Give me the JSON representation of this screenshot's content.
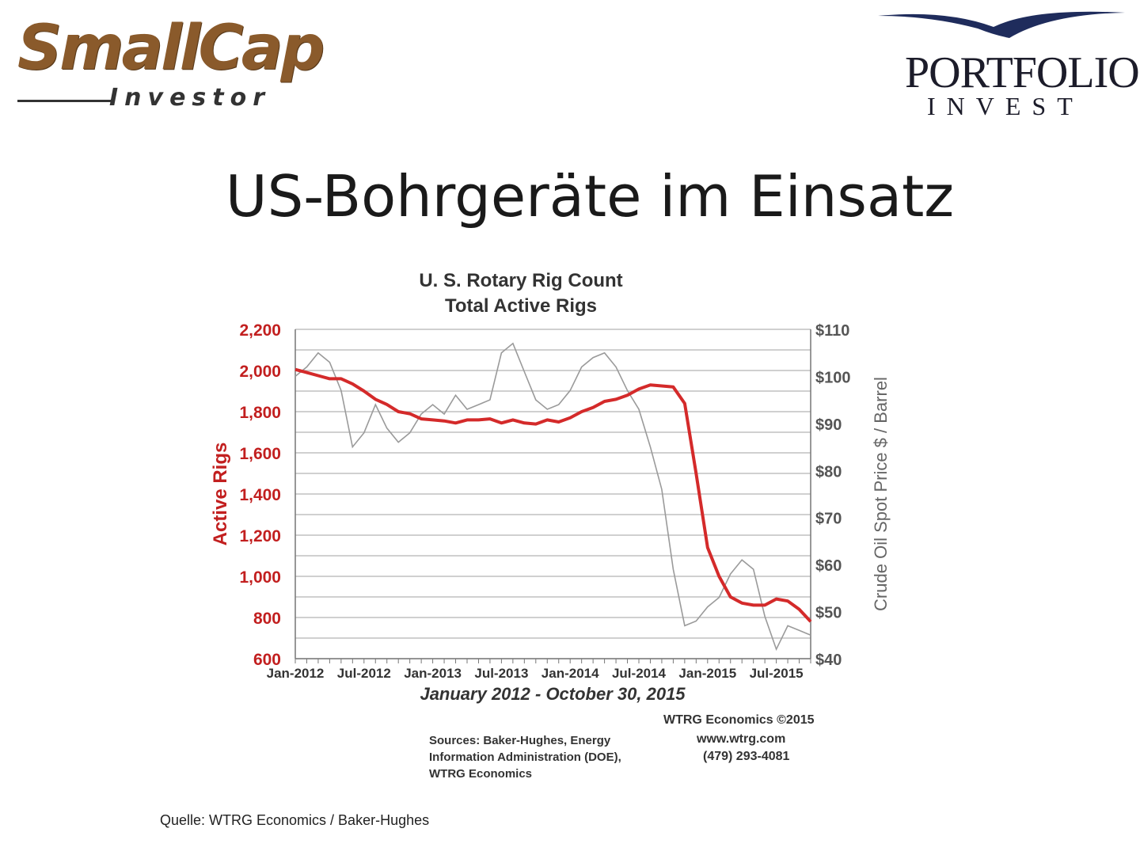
{
  "logo_left": {
    "word": "SmallCap",
    "sub": "Investor"
  },
  "logo_right": {
    "big": "PORTFOLIO",
    "small": "INVEST"
  },
  "page": {
    "title": "US-Bohrgeräte im Einsatz",
    "source": "Quelle: WTRG Economics / Baker-Hughes"
  },
  "chart_data": {
    "type": "line",
    "title_lines": [
      "U. S. Rotary Rig Count",
      "Total Active Rigs"
    ],
    "xlabel": "January 2012 - October 30, 2015",
    "ylabel_left": "Active Rigs",
    "ylabel_right": "Crude Oil Spot Price $ / Barrel",
    "x_ticks": [
      "Jan-2012",
      "Jul-2012",
      "Jan-2013",
      "Jul-2013",
      "Jan-2014",
      "Jul-2014",
      "Jan-2015",
      "Jul-2015"
    ],
    "x_range": [
      "Jan-2012",
      "Oct-2015"
    ],
    "ylim_left": [
      600,
      2200
    ],
    "ylim_right": [
      40,
      110
    ],
    "y_ticks_left": [
      "2,200",
      "2,000",
      "1,800",
      "1,600",
      "1,400",
      "1,200",
      "1,000",
      "800",
      "600"
    ],
    "y_ticks_right": [
      "$110",
      "$100",
      "$90",
      "$80",
      "$70",
      "$60",
      "$50",
      "$40"
    ],
    "grid": true,
    "colors": {
      "rigs": "#d42a2a",
      "oil": "#9a9a9a",
      "left_axis": "#c21f1f"
    },
    "series": [
      {
        "axis": "left",
        "x": [
          0,
          1,
          2,
          3,
          4,
          5,
          6,
          7,
          8,
          9,
          10,
          11,
          12,
          13,
          14,
          15,
          16,
          17,
          18,
          19,
          20,
          21,
          22,
          23,
          24,
          25,
          26,
          27,
          28,
          29,
          30,
          31,
          32,
          33,
          34,
          35,
          36,
          37,
          38,
          39,
          40,
          41,
          42,
          43,
          44,
          45
        ],
        "y": [
          2005,
          1990,
          1975,
          1960,
          1960,
          1935,
          1900,
          1860,
          1835,
          1800,
          1790,
          1765,
          1760,
          1755,
          1745,
          1760,
          1760,
          1765,
          1745,
          1760,
          1745,
          1740,
          1760,
          1750,
          1770,
          1800,
          1820,
          1850,
          1860,
          1880,
          1910,
          1930,
          1925,
          1920,
          1840,
          1500,
          1140,
          1000,
          900,
          870,
          860,
          860,
          890,
          880,
          840,
          780
        ]
      },
      {
        "axis": "right",
        "x": [
          0,
          1,
          2,
          3,
          4,
          5,
          6,
          7,
          8,
          9,
          10,
          11,
          12,
          13,
          14,
          15,
          16,
          17,
          18,
          19,
          20,
          21,
          22,
          23,
          24,
          25,
          26,
          27,
          28,
          29,
          30,
          31,
          32,
          33,
          34,
          35,
          36,
          37,
          38,
          39,
          40,
          41,
          42,
          43,
          44,
          45
        ],
        "y": [
          100,
          102,
          105,
          103,
          97,
          85,
          88,
          94,
          89,
          86,
          88,
          92,
          94,
          92,
          96,
          93,
          94,
          95,
          105,
          107,
          101,
          95,
          93,
          94,
          97,
          102,
          104,
          105,
          102,
          97,
          93,
          85,
          76,
          59,
          47,
          48,
          51,
          53,
          58,
          61,
          59,
          49,
          42,
          47,
          46,
          45
        ]
      }
    ],
    "notes": [
      "WTRG Economics  ©2015",
      "www.wtrg.com",
      "(479) 293-4081",
      "Sources: Baker-Hughes, Energy",
      "Information Administration (DOE),",
      "WTRG Economics"
    ]
  }
}
